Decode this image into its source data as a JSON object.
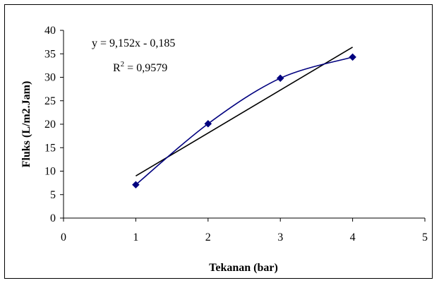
{
  "chart_data": {
    "type": "scatter",
    "title": "",
    "xlabel": "Tekanan (bar)",
    "ylabel": "Fluks (L/m2.Jam)",
    "xlim": [
      0,
      5
    ],
    "ylim": [
      0,
      40
    ],
    "x_ticks": [
      0,
      1,
      2,
      3,
      4,
      5
    ],
    "y_ticks": [
      0,
      5,
      10,
      15,
      20,
      25,
      30,
      35,
      40
    ],
    "grid": false,
    "legend": "none",
    "series": [
      {
        "x": [
          1,
          2,
          3,
          4
        ],
        "values": [
          7.1,
          20.1,
          29.8,
          34.3
        ],
        "marker": "diamond",
        "line": "smooth",
        "color": "#00007f"
      }
    ],
    "trendline": {
      "type": "linear",
      "slope": 9.152,
      "intercept": -0.185,
      "x_range": [
        1,
        4
      ],
      "color": "#000000"
    },
    "annotations": {
      "equation": "y = 9,152x - 0,185",
      "r2_prefix": "R",
      "r2_sup": "2",
      "r2_suffix": " = 0,9579"
    }
  }
}
